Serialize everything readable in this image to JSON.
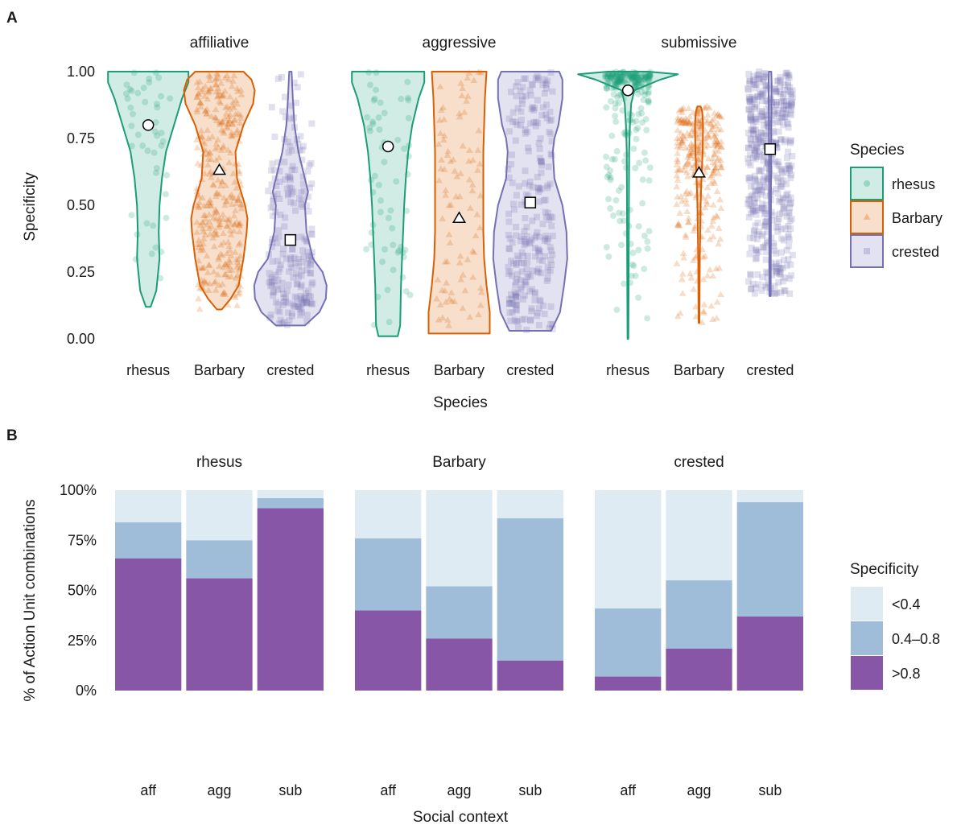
{
  "colors": {
    "rhesus": "#1b9e77",
    "Barbary": "#d95f02",
    "crested": "#7570b3",
    "spec_low": "#deebf3",
    "spec_mid": "#9fbcd9",
    "spec_high": "#8856a7"
  },
  "chart_data": [
    {
      "panel": "A",
      "type": "violin",
      "ylabel": "Specificity",
      "xlabel": "Species",
      "ylim": [
        0,
        1
      ],
      "yticks": [
        "0.00",
        "0.25",
        "0.50",
        "0.75",
        "1.00"
      ],
      "legend": {
        "title": "Species",
        "placement": "right",
        "entries": [
          "rhesus",
          "Barbary",
          "crested"
        ]
      },
      "facets": [
        {
          "label": "affiliative",
          "groups": [
            {
              "species": "rhesus",
              "label": "rhesus",
              "min": 0.12,
              "max": 1.0,
              "mean": 0.8,
              "marker": "circle",
              "n": 45,
              "profile": [
                [
                  0.12,
                  3
                ],
                [
                  0.18,
                  10
                ],
                [
                  0.3,
                  14
                ],
                [
                  0.4,
                  13
                ],
                [
                  0.5,
                  14
                ],
                [
                  0.6,
                  17
                ],
                [
                  0.7,
                  22
                ],
                [
                  0.8,
                  32
                ],
                [
                  0.9,
                  42
                ],
                [
                  0.96,
                  50
                ],
                [
                  1.0,
                  50
                ]
              ]
            },
            {
              "species": "Barbary",
              "label": "Barbary",
              "min": 0.11,
              "max": 1.0,
              "mean": 0.63,
              "marker": "triangle",
              "n": 350,
              "profile": [
                [
                  0.11,
                  3
                ],
                [
                  0.15,
                  14
                ],
                [
                  0.2,
                  24
                ],
                [
                  0.3,
                  30
                ],
                [
                  0.4,
                  34
                ],
                [
                  0.45,
                  35
                ],
                [
                  0.5,
                  32
                ],
                [
                  0.6,
                  22
                ],
                [
                  0.7,
                  20
                ],
                [
                  0.8,
                  30
                ],
                [
                  0.88,
                  42
                ],
                [
                  0.93,
                  44
                ],
                [
                  0.97,
                  40
                ],
                [
                  1.0,
                  30
                ]
              ]
            },
            {
              "species": "crested",
              "label": "crested",
              "min": 0.05,
              "max": 1.0,
              "mean": 0.37,
              "marker": "square",
              "n": 220,
              "profile": [
                [
                  0.05,
                  18
                ],
                [
                  0.1,
                  36
                ],
                [
                  0.15,
                  44
                ],
                [
                  0.2,
                  45
                ],
                [
                  0.25,
                  40
                ],
                [
                  0.3,
                  28
                ],
                [
                  0.4,
                  20
                ],
                [
                  0.5,
                  18
                ],
                [
                  0.55,
                  22
                ],
                [
                  0.6,
                  18
                ],
                [
                  0.7,
                  10
                ],
                [
                  0.8,
                  5
                ],
                [
                  0.9,
                  3
                ],
                [
                  1.0,
                  1.5
                ]
              ]
            }
          ]
        },
        {
          "label": "aggressive",
          "groups": [
            {
              "species": "rhesus",
              "label": "rhesus",
              "min": 0.01,
              "max": 1.0,
              "mean": 0.72,
              "marker": "circle",
              "n": 60,
              "profile": [
                [
                  0.01,
                  12
                ],
                [
                  0.05,
                  15
                ],
                [
                  0.2,
                  16
                ],
                [
                  0.35,
                  18
                ],
                [
                  0.5,
                  20
                ],
                [
                  0.6,
                  22
                ],
                [
                  0.7,
                  25
                ],
                [
                  0.8,
                  30
                ],
                [
                  0.9,
                  38
                ],
                [
                  0.96,
                  45
                ],
                [
                  1.0,
                  45
                ]
              ]
            },
            {
              "species": "Barbary",
              "label": "Barbary",
              "min": 0.02,
              "max": 1.0,
              "mean": 0.45,
              "marker": "triangle",
              "n": 90,
              "profile": [
                [
                  0.02,
                  38
                ],
                [
                  0.1,
                  38
                ],
                [
                  0.2,
                  34
                ],
                [
                  0.3,
                  31
                ],
                [
                  0.4,
                  30
                ],
                [
                  0.5,
                  30
                ],
                [
                  0.6,
                  30
                ],
                [
                  0.7,
                  30
                ],
                [
                  0.8,
                  31
                ],
                [
                  0.9,
                  32
                ],
                [
                  1.0,
                  34
                ]
              ]
            },
            {
              "species": "crested",
              "label": "crested",
              "min": 0.03,
              "max": 1.0,
              "mean": 0.51,
              "marker": "square",
              "n": 260,
              "profile": [
                [
                  0.03,
                  26
                ],
                [
                  0.1,
                  37
                ],
                [
                  0.2,
                  42
                ],
                [
                  0.3,
                  46
                ],
                [
                  0.4,
                  45
                ],
                [
                  0.5,
                  40
                ],
                [
                  0.6,
                  30
                ],
                [
                  0.7,
                  28
                ],
                [
                  0.75,
                  30
                ],
                [
                  0.8,
                  35
                ],
                [
                  0.9,
                  40
                ],
                [
                  0.97,
                  40
                ],
                [
                  1.0,
                  36
                ]
              ]
            }
          ]
        },
        {
          "label": "submissive",
          "groups": [
            {
              "species": "rhesus",
              "label": "rhesus",
              "min": 0.0,
              "max": 1.0,
              "mean": 0.93,
              "marker": "circle",
              "n": 250,
              "profile": [
                [
                  0.0,
                  0.5
                ],
                [
                  0.3,
                  1
                ],
                [
                  0.5,
                  1.2
                ],
                [
                  0.7,
                  1.5
                ],
                [
                  0.8,
                  2.5
                ],
                [
                  0.88,
                  4
                ],
                [
                  0.93,
                  8
                ],
                [
                  0.97,
                  40
                ],
                [
                  0.99,
                  62
                ],
                [
                  1.0,
                  25
                ]
              ]
            },
            {
              "species": "Barbary",
              "label": "Barbary",
              "min": 0.06,
              "max": 0.87,
              "mean": 0.62,
              "marker": "triangle",
              "n": 300,
              "profile": [
                [
                  0.06,
                  0.5
                ],
                [
                  0.3,
                  1
                ],
                [
                  0.5,
                  2
                ],
                [
                  0.6,
                  3
                ],
                [
                  0.7,
                  4.5
                ],
                [
                  0.8,
                  5
                ],
                [
                  0.85,
                  4
                ],
                [
                  0.87,
                  2
                ]
              ]
            },
            {
              "species": "crested",
              "label": "crested",
              "min": 0.16,
              "max": 1.0,
              "mean": 0.71,
              "marker": "square",
              "n": 480,
              "profile": [
                [
                  0.16,
                  0.8
                ],
                [
                  0.4,
                  1
                ],
                [
                  0.6,
                  1.2
                ],
                [
                  0.8,
                  1.5
                ],
                [
                  0.95,
                  2
                ],
                [
                  1.0,
                  1.5
                ]
              ]
            }
          ]
        }
      ]
    },
    {
      "panel": "B",
      "type": "bar",
      "stacked": true,
      "ylabel": "% of Action Unit combinations",
      "xlabel": "Social context",
      "ylim": [
        0,
        100
      ],
      "yticks": [
        "0%",
        "25%",
        "50%",
        "75%",
        "100%"
      ],
      "categories": [
        "aff",
        "agg",
        "sub"
      ],
      "legend": {
        "title": "Specificity",
        "placement": "right",
        "entries": [
          "<0.4",
          "0.4–0.8",
          ">0.8"
        ]
      },
      "facets": [
        {
          "label": "rhesus",
          "series": [
            {
              "name": ">0.8",
              "values": [
                66,
                56,
                91
              ]
            },
            {
              "name": "0.4–0.8",
              "values": [
                18,
                19,
                5
              ]
            },
            {
              "name": "<0.4",
              "values": [
                16,
                25,
                4
              ]
            }
          ]
        },
        {
          "label": "Barbary",
          "series": [
            {
              "name": ">0.8",
              "values": [
                40,
                26,
                15
              ]
            },
            {
              "name": "0.4–0.8",
              "values": [
                36,
                26,
                71
              ]
            },
            {
              "name": "<0.4",
              "values": [
                24,
                48,
                14
              ]
            }
          ]
        },
        {
          "label": "crested",
          "series": [
            {
              "name": ">0.8",
              "values": [
                7,
                21,
                37
              ]
            },
            {
              "name": "0.4–0.8",
              "values": [
                34,
                34,
                57
              ]
            },
            {
              "name": "<0.4",
              "values": [
                59,
                45,
                6
              ]
            }
          ]
        }
      ]
    }
  ]
}
